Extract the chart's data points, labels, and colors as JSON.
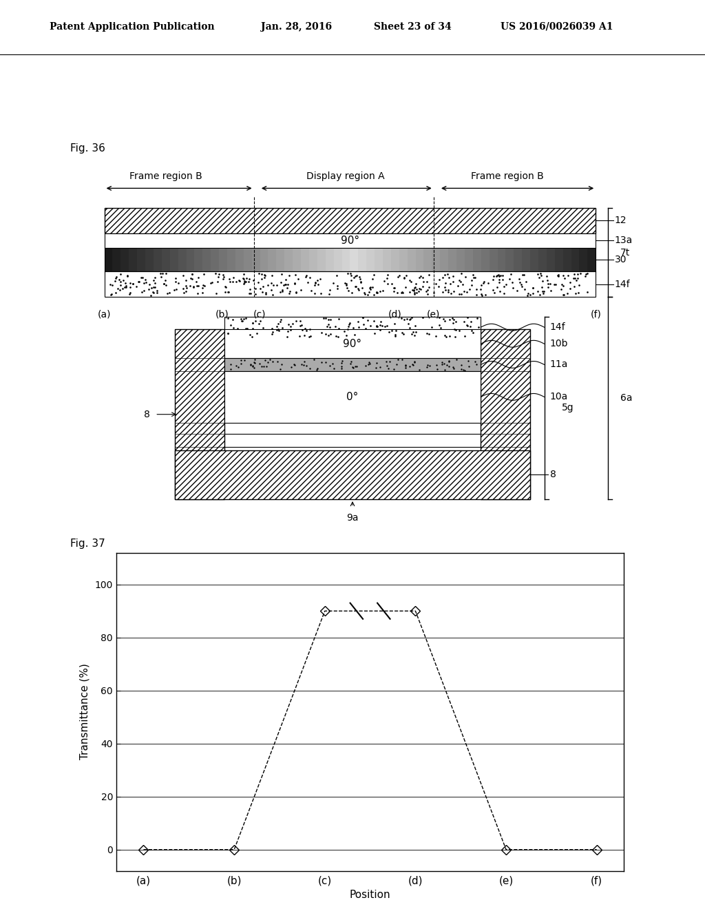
{
  "title_header": "Patent Application Publication",
  "header_date": "Jan. 28, 2016",
  "header_sheet": "Sheet 23 of 34",
  "header_patent": "US 2016/0026039 A1",
  "fig36_label": "Fig. 36",
  "fig37_label": "Fig. 37",
  "background_color": "#ffffff",
  "text_color": "#000000",
  "frame_region_B_left_label": "Frame region B",
  "display_region_A_label": "Display region A",
  "frame_region_B_right_label": "Frame region B",
  "graph_transmittance_x": [
    0,
    1,
    2,
    3,
    4,
    5
  ],
  "graph_transmittance_y": [
    0,
    0,
    90,
    90,
    0,
    0
  ],
  "graph_xlabel": "Position",
  "graph_ylabel": "Transmittance (%)",
  "graph_yticks": [
    0,
    20,
    40,
    60,
    80,
    100
  ],
  "graph_xtick_labels": [
    "(a)",
    "(b)",
    "(c)",
    "(d)",
    "(e)",
    "(f)"
  ]
}
